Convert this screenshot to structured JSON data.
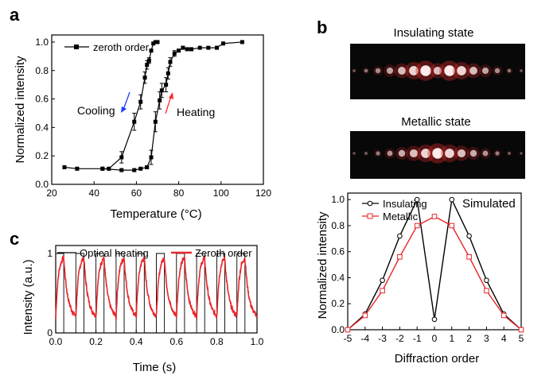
{
  "panels": {
    "a": "a",
    "b": "b",
    "c": "c"
  },
  "chart_data": [
    {
      "id": "a",
      "type": "line",
      "xlabel": "Temperature (°C)",
      "ylabel": "Normalized intensity",
      "xlim": [
        20,
        120
      ],
      "ylim": [
        0,
        1.05
      ],
      "xticks": [
        "20",
        "40",
        "60",
        "80",
        "100",
        "120"
      ],
      "yticks": [
        "0.0",
        "0.2",
        "0.4",
        "0.6",
        "0.8",
        "1.0"
      ],
      "legend": {
        "entries": [
          "zeroth order"
        ],
        "position": "top-left"
      },
      "annotations": {
        "cooling": "Cooling",
        "heating": "Heating"
      },
      "series": [
        {
          "name": "zeroth order",
          "branch": "Cooling",
          "x": [
            26,
            32,
            44,
            47,
            53,
            59,
            62,
            64,
            65,
            66,
            67,
            68,
            69,
            70
          ],
          "y": [
            0.12,
            0.11,
            0.11,
            0.11,
            0.19,
            0.44,
            0.58,
            0.75,
            0.84,
            0.87,
            0.94,
            0.99,
            1.0,
            1.0
          ],
          "err": [
            0,
            0.01,
            0,
            0.01,
            0.04,
            0.06,
            0.05,
            0.04,
            0.03,
            0.02,
            0.01,
            0,
            0,
            0
          ]
        },
        {
          "name": "zeroth order",
          "branch": "Heating",
          "x": [
            44,
            53,
            59,
            62,
            65,
            67,
            69,
            71,
            72,
            74,
            75,
            76,
            78,
            80,
            82,
            84,
            86,
            90,
            94,
            98,
            101,
            110
          ],
          "y": [
            0.11,
            0.1,
            0.1,
            0.11,
            0.12,
            0.19,
            0.44,
            0.59,
            0.66,
            0.7,
            0.78,
            0.86,
            0.92,
            0.94,
            0.96,
            0.95,
            0.95,
            0.96,
            0.96,
            0.96,
            0.99,
            1.0
          ],
          "err": [
            0,
            0,
            0,
            0,
            0.01,
            0.05,
            0.07,
            0.06,
            0.05,
            0.05,
            0.04,
            0.03,
            0.02,
            0.01,
            0.01,
            0.01,
            0.01,
            0,
            0,
            0.01,
            0.01,
            0
          ]
        }
      ]
    },
    {
      "id": "b",
      "type": "line",
      "xlabel": "Diffraction order",
      "ylabel": "Normalized intensity",
      "xlim": [
        -5,
        5
      ],
      "ylim": [
        0,
        1.05
      ],
      "xticks": [
        "-5",
        "-4",
        "-3",
        "-2",
        "-1",
        "0",
        "1",
        "2",
        "3",
        "4",
        "5"
      ],
      "yticks": [
        "0.0",
        "0.2",
        "0.4",
        "0.6",
        "0.8",
        "1.0"
      ],
      "legend": {
        "entries": [
          "Insulating",
          "Metallic"
        ],
        "position": "top-left"
      },
      "annotations": {
        "simulated": "Simulated"
      },
      "series": [
        {
          "name": "Insulating",
          "color": "#000000",
          "x": [
            -5,
            -4,
            -3,
            -2,
            -1,
            0,
            1,
            2,
            3,
            4,
            5
          ],
          "y": [
            0.0,
            0.12,
            0.38,
            0.72,
            1.0,
            0.08,
            1.0,
            0.72,
            0.38,
            0.12,
            0.0
          ]
        },
        {
          "name": "Metallic",
          "color": "#e8262b",
          "x": [
            -5,
            -4,
            -3,
            -2,
            -1,
            0,
            1,
            2,
            3,
            4,
            5
          ],
          "y": [
            0.0,
            0.11,
            0.3,
            0.56,
            0.8,
            0.87,
            0.8,
            0.56,
            0.3,
            0.11,
            0.0
          ]
        }
      ]
    },
    {
      "id": "c",
      "type": "line",
      "xlabel": "Time (s)",
      "ylabel": "Intensity (a.u.)",
      "xlim": [
        0,
        1.0
      ],
      "ylim": [
        0,
        1.1
      ],
      "xticks": [
        "0.0",
        "0.2",
        "0.4",
        "0.6",
        "0.8",
        "1.0"
      ],
      "yticks": [
        "0",
        "1"
      ],
      "legend": {
        "entries": [
          "Optical heating",
          "Zeroth order"
        ],
        "position": "top"
      },
      "square_wave": {
        "name": "Optical heating",
        "color": "#000000",
        "period": 0.1,
        "on_fraction": 0.4,
        "high": 1.0,
        "low": 0.0
      },
      "series": [
        {
          "name": "Zeroth order",
          "color": "#e8262b",
          "min": 0.18,
          "max": 0.97,
          "period": 0.1
        }
      ]
    }
  ],
  "diffraction_images": [
    {
      "title": "Insulating state",
      "spot_orders": [
        -7,
        -6,
        -5,
        -4,
        -3,
        -2,
        -1,
        0,
        1,
        2,
        3,
        4,
        5,
        6,
        7
      ]
    },
    {
      "title": "Metallic state",
      "spot_orders": [
        -7,
        -6,
        -5,
        -4,
        -3,
        -2,
        -1,
        0,
        1,
        2,
        3,
        4,
        5,
        6,
        7
      ]
    }
  ]
}
